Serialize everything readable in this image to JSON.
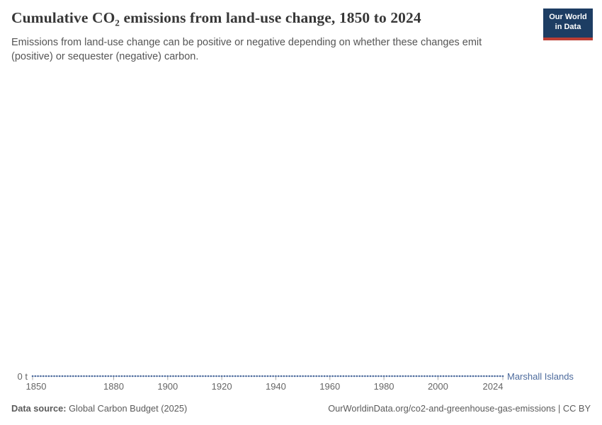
{
  "header": {
    "title": "Cumulative CO₂ emissions from land-use change, 1850 to 2024",
    "subtitle": "Emissions from land-use change can be positive or negative depending on whether these changes emit (positive) or sequester (negative) carbon.",
    "logo": {
      "line1": "Our World",
      "line2": "in Data",
      "bg_color": "#1d3d63",
      "accent_color": "#bc3e34"
    }
  },
  "chart_data": {
    "type": "line",
    "title": "Cumulative CO₂ emissions from land-use change, 1850 to 2024",
    "xlabel": "",
    "ylabel": "",
    "unit": "t",
    "x_range": [
      1850,
      2024
    ],
    "x_ticks": [
      1850,
      1880,
      1900,
      1920,
      1940,
      1960,
      1980,
      2000,
      2024
    ],
    "y_ticks": [
      {
        "value": 0,
        "label": "0 t"
      }
    ],
    "grid": false,
    "marker": "circle",
    "legend_position": "end-of-line",
    "series": [
      {
        "name": "Marshall Islands",
        "color": "#4c6a9c",
        "x_start": 1850,
        "x_end": 2024,
        "x_step": 1,
        "constant_value": 0,
        "description": "Flat line at 0 t for every year from 1850 to 2024"
      }
    ]
  },
  "footer": {
    "source_label": "Data source:",
    "source_value": "Global Carbon Budget (2025)",
    "link_text": "OurWorldinData.org/co2-and-greenhouse-gas-emissions | CC BY"
  }
}
